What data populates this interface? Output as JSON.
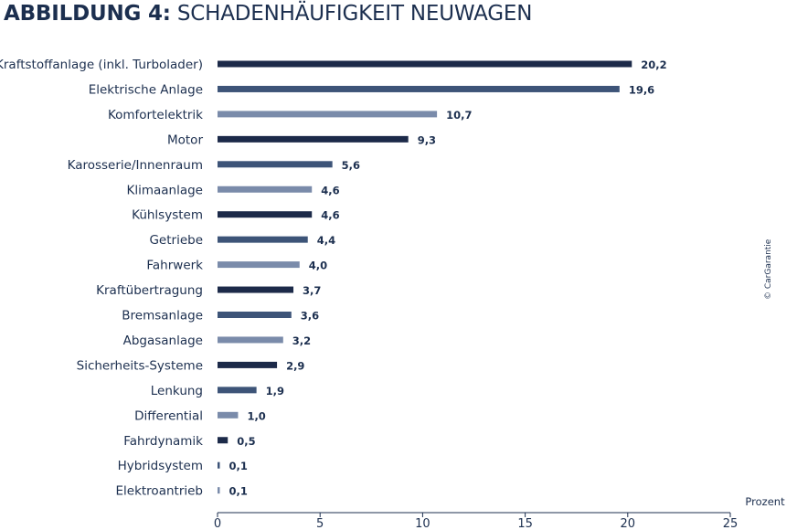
{
  "title": {
    "prefix": "ABBILDUNG 4:",
    "main": "SCHADENHÄUFIGKEIT NEUWAGEN"
  },
  "credit": "© CarGarantie",
  "colors": {
    "dark": "#1c2a49",
    "medium": "#3d5478",
    "light": "#7a8baa",
    "text": "#1c2f4f"
  },
  "chart_data": {
    "type": "bar",
    "orientation": "horizontal",
    "categories": [
      "Kraftstoffanlage (inkl. Turbolader)",
      "Elektrische Anlage",
      "Komfortelektrik",
      "Motor",
      "Karosserie/Innenraum",
      "Klimaanlage",
      "Kühlsystem",
      "Getriebe",
      "Fahrwerk",
      "Kraftübertragung",
      "Bremsanlage",
      "Abgasanlage",
      "Sicherheits-Systeme",
      "Lenkung",
      "Differential",
      "Fahrdynamik",
      "Hybridsystem",
      "Elektroantrieb"
    ],
    "values": [
      20.2,
      19.6,
      10.7,
      9.3,
      5.6,
      4.6,
      4.6,
      4.4,
      4.0,
      3.7,
      3.6,
      3.2,
      2.9,
      1.9,
      1.0,
      0.5,
      0.1,
      0.1
    ],
    "value_labels": [
      "20,2",
      "19,6",
      "10,7",
      "9,3",
      "5,6",
      "4,6",
      "4,6",
      "4,4",
      "4,0",
      "3,7",
      "3,6",
      "3,2",
      "2,9",
      "1,9",
      "1,0",
      "0,5",
      "0,1",
      "0,1"
    ],
    "bar_colors": [
      "dark",
      "medium",
      "light",
      "dark",
      "medium",
      "light",
      "dark",
      "medium",
      "light",
      "dark",
      "medium",
      "light",
      "dark",
      "medium",
      "light",
      "dark",
      "medium",
      "light"
    ],
    "xlabel": "Prozent",
    "xlim": [
      0,
      25
    ],
    "xticks": [
      0,
      5,
      10,
      15,
      20,
      25
    ],
    "grid": false
  }
}
